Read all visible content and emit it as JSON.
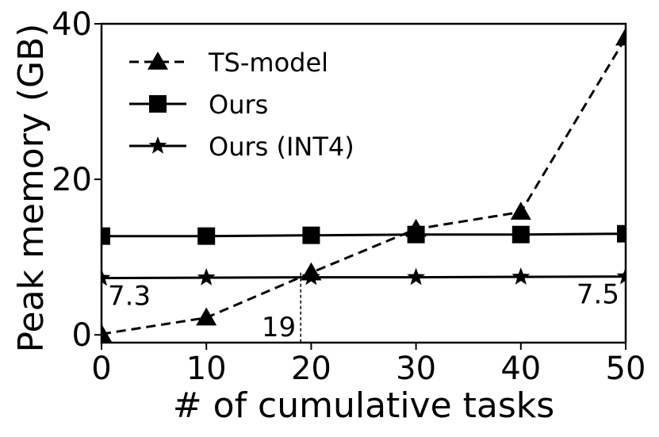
{
  "chart_data": {
    "type": "line",
    "xlabel": "# of cumulative tasks",
    "ylabel": "Peak memory (GB)",
    "xlim": [
      0,
      50
    ],
    "ylim": [
      -1,
      40
    ],
    "xticks": [
      0,
      10,
      20,
      30,
      40,
      50
    ],
    "xtick_labels": [
      "0",
      "10",
      "20",
      "30",
      "40",
      "50"
    ],
    "yticks": [
      0,
      20,
      40
    ],
    "ytick_labels": [
      "0",
      "20",
      "40"
    ],
    "grid": false,
    "legend_position": "top-left",
    "series": [
      {
        "name": "TS-model",
        "marker": "triangle",
        "linestyle": "dashed",
        "x": [
          0,
          10,
          20,
          30,
          40,
          50
        ],
        "y": [
          0.1,
          2.2,
          8.0,
          13.6,
          15.8,
          38.2
        ]
      },
      {
        "name": "Ours",
        "marker": "square",
        "linestyle": "solid",
        "x": [
          0,
          10,
          20,
          30,
          40,
          50
        ],
        "y": [
          12.7,
          12.7,
          12.8,
          12.9,
          12.9,
          13.0
        ]
      },
      {
        "name": "Ours (INT4)",
        "marker": "star",
        "linestyle": "solid",
        "x": [
          0,
          10,
          20,
          30,
          40,
          50
        ],
        "y": [
          7.3,
          7.35,
          7.4,
          7.4,
          7.45,
          7.5
        ]
      }
    ],
    "annotations": [
      {
        "text": "7.3",
        "x": 0,
        "y": 7.3
      },
      {
        "text": "7.5",
        "x": 50,
        "y": 7.5
      },
      {
        "text": "19",
        "x": 19,
        "y": 8.0,
        "guide": "vertical-dashed"
      }
    ]
  }
}
